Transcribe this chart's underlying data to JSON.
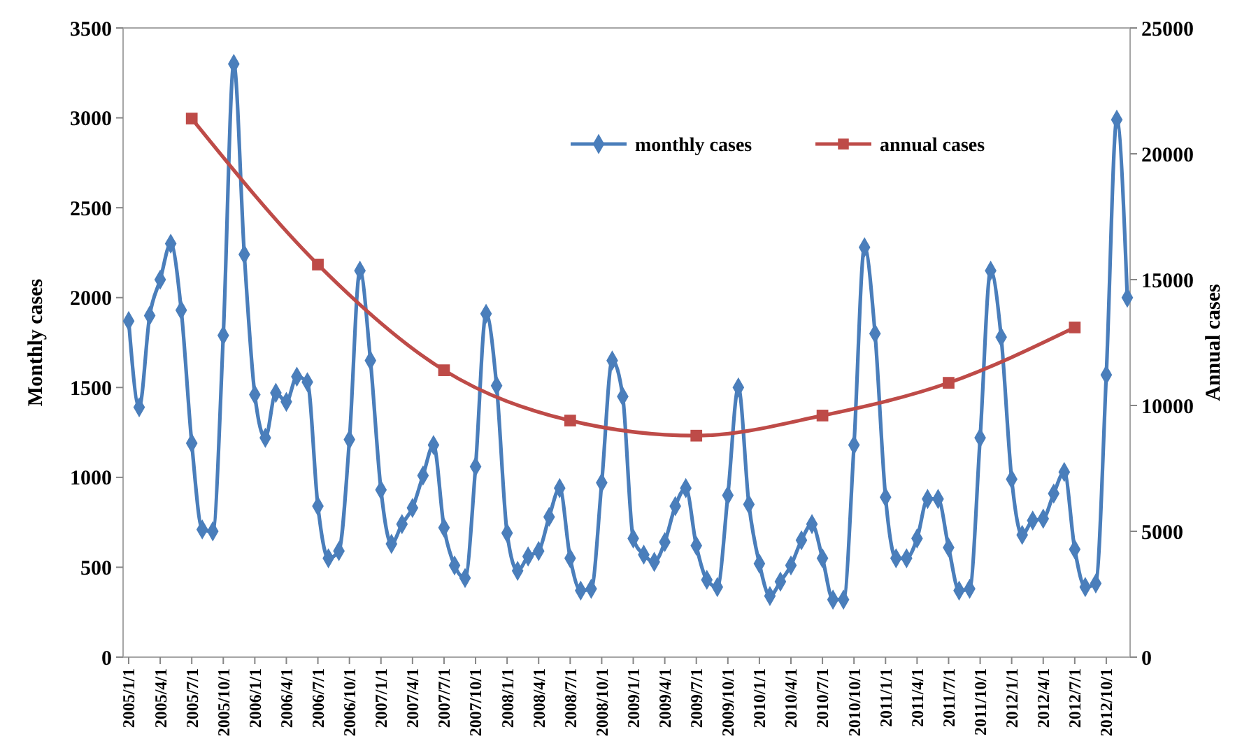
{
  "chart_data": {
    "type": "line",
    "ylabel": "Monthly  cases",
    "y2label": "Annual  cases",
    "categories": [
      "2005/1/1",
      null,
      null,
      "2005/4/1",
      null,
      null,
      "2005/7/1",
      null,
      null,
      "2005/10/1",
      null,
      null,
      "2006/1/1",
      null,
      null,
      "2006/4/1",
      null,
      null,
      "2006/7/1",
      null,
      null,
      "2006/10/1",
      null,
      null,
      "2007/1/1",
      null,
      null,
      "2007/4/1",
      null,
      null,
      "2007/7/1",
      null,
      null,
      "2007/10/1",
      null,
      null,
      "2008/1/1",
      null,
      null,
      "2008/4/1",
      null,
      null,
      "2008/7/1",
      null,
      null,
      "2008/10/1",
      null,
      null,
      "2009/1/1",
      null,
      null,
      "2009/4/1",
      null,
      null,
      "2009/7/1",
      null,
      null,
      "2009/10/1",
      null,
      null,
      "2010/1/1",
      null,
      null,
      "2010/4/1",
      null,
      null,
      "2010/7/1",
      null,
      null,
      "2010/10/1",
      null,
      null,
      "2011/1/1",
      null,
      null,
      "2011/4/1",
      null,
      null,
      "2011/7/1",
      null,
      null,
      "2011/10/1",
      null,
      null,
      "2012/1/1",
      null,
      null,
      "2012/4/1",
      null,
      null,
      "2012/7/1",
      null,
      null,
      "2012/10/1",
      null,
      null
    ],
    "series": [
      {
        "name": "monthly cases",
        "color": "#4a7ebb",
        "marker": "diamond",
        "values": [
          1870,
          1390,
          1900,
          2100,
          2300,
          1930,
          1190,
          710,
          700,
          1790,
          3300,
          2240,
          1460,
          1220,
          1470,
          1420,
          1560,
          1530,
          840,
          550,
          590,
          1210,
          2150,
          1650,
          930,
          630,
          740,
          830,
          1010,
          1180,
          720,
          510,
          440,
          1060,
          1910,
          1510,
          690,
          480,
          560,
          590,
          780,
          940,
          550,
          370,
          380,
          970,
          1650,
          1450,
          660,
          570,
          530,
          640,
          840,
          940,
          620,
          430,
          390,
          900,
          1500,
          850,
          520,
          340,
          420,
          510,
          650,
          740,
          550,
          320,
          320,
          1180,
          2280,
          1800,
          890,
          550,
          550,
          660,
          880,
          880,
          610,
          370,
          380,
          1220,
          2150,
          1780,
          990,
          680,
          760,
          770,
          910,
          1030,
          600,
          390,
          410,
          1570,
          2990,
          2000
        ]
      },
      {
        "name": "annual cases",
        "color": "#be4b48",
        "marker": "square",
        "axis": "y2",
        "x": [
          "2005/7/1",
          "2006/7/1",
          "2007/7/1",
          "2008/7/1",
          "2009/7/1",
          "2010/7/1",
          "2011/7/1",
          "2012/7/1"
        ],
        "values": [
          21400,
          15600,
          11400,
          9400,
          8800,
          9600,
          10900,
          13100
        ]
      }
    ],
    "ylim": [
      0,
      3500
    ],
    "yticks": [
      0,
      500,
      1000,
      1500,
      2000,
      2500,
      3000,
      3500
    ],
    "y2lim": [
      0,
      25000
    ],
    "y2ticks": [
      0,
      5000,
      10000,
      15000,
      20000,
      25000
    ],
    "grid": false,
    "legend": "top"
  }
}
